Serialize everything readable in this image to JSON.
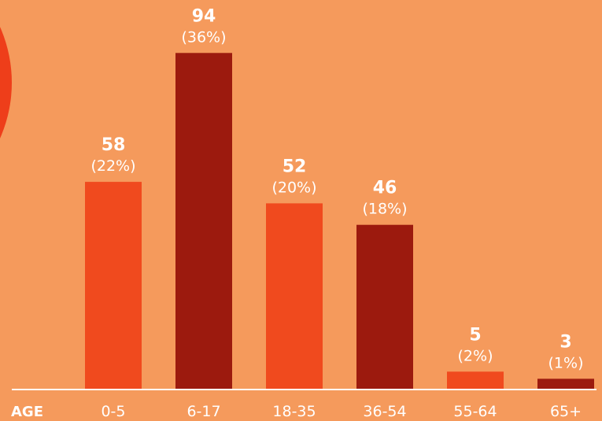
{
  "chart_data": {
    "type": "bar",
    "xlabel": "AGE",
    "categories": [
      "0-5",
      "6-17",
      "18-35",
      "36-54",
      "55-64",
      "65+"
    ],
    "values": [
      58,
      94,
      52,
      46,
      5,
      3
    ],
    "percent_labels": [
      "(22%)",
      "(36%)",
      "(20%)",
      "(18%)",
      "(2%)",
      "(1%)"
    ],
    "bar_colors": [
      "#F04A1E",
      "#9C1A0E",
      "#F04A1E",
      "#9C1A0E",
      "#F04A1E",
      "#9C1A0E"
    ],
    "ylim": [
      0,
      100
    ],
    "grid": false,
    "legend": "none"
  },
  "colors": {
    "background": "#F59A5C",
    "accent_circle": "#EE3E1A",
    "baseline": "#FFFFFF",
    "text": "#FFFFFF"
  }
}
